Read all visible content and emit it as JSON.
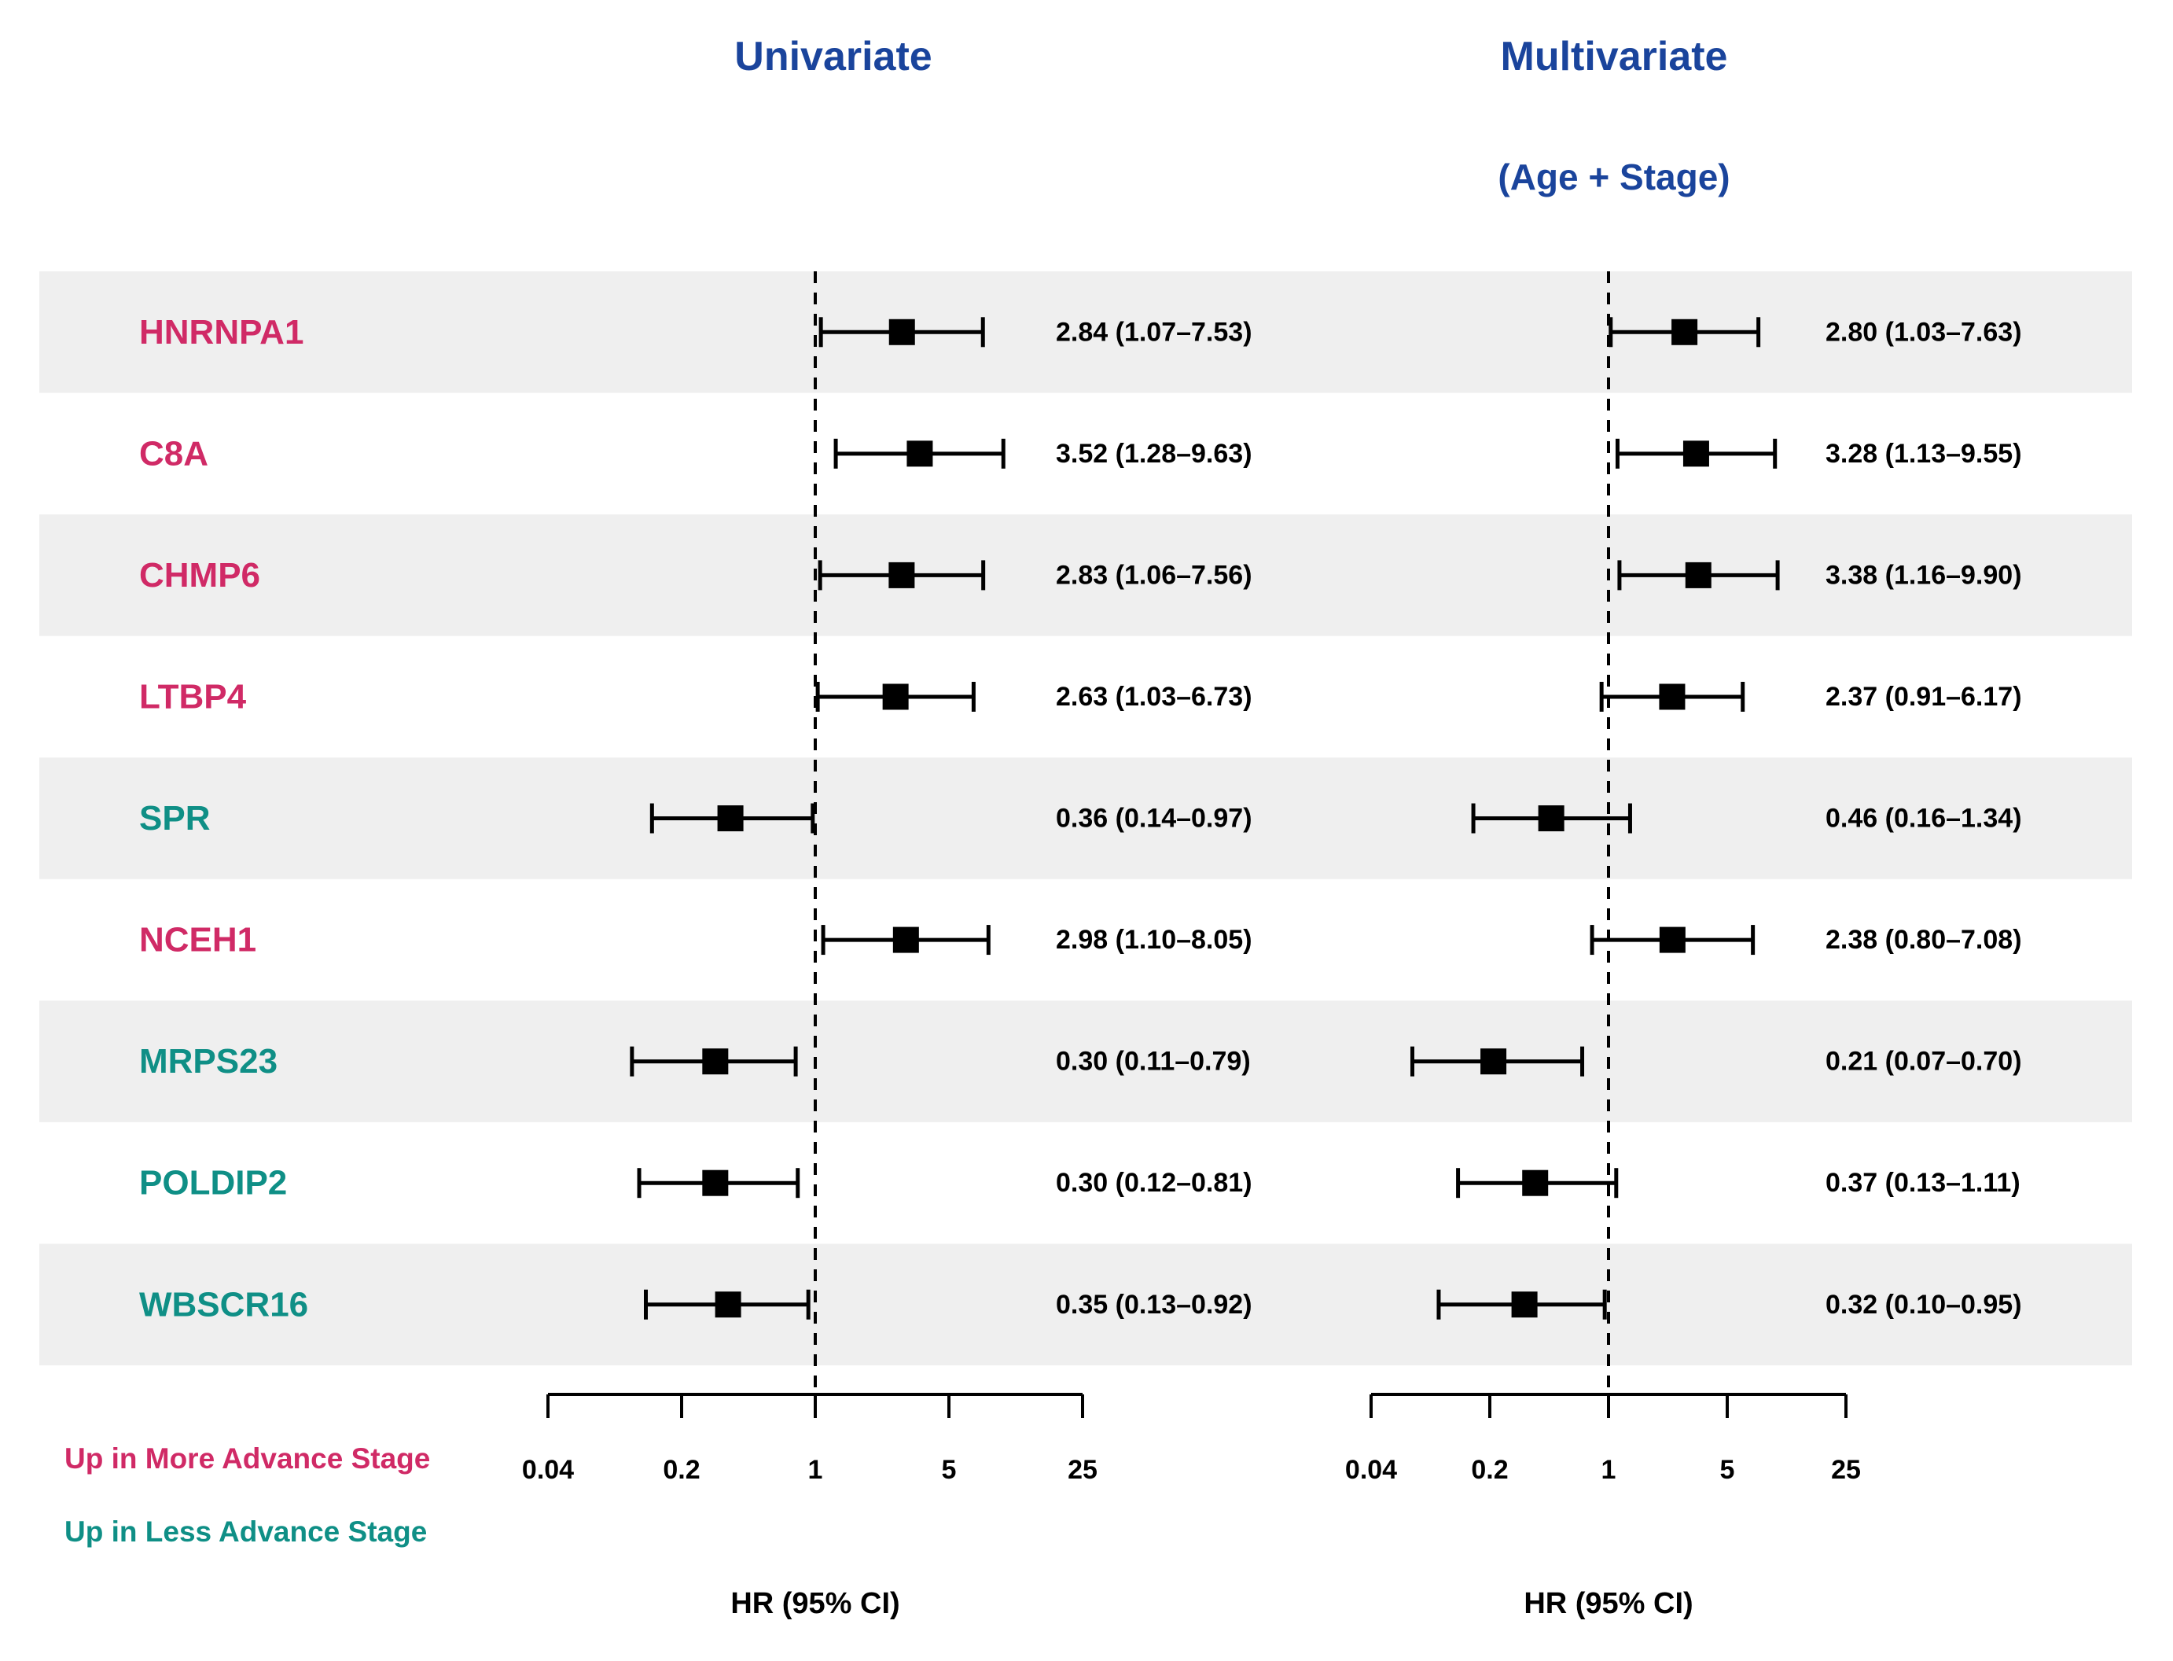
{
  "headers": {
    "univariate": "Univariate",
    "multivariate": "Multivariate",
    "multivariate_subtitle": "(Age + Stage)"
  },
  "legend": {
    "up_more": "Up in More Advance Stage",
    "up_less": "Up in Less Advance Stage"
  },
  "axes": {
    "xlabel": "HR (95% CI)",
    "scale": "log",
    "ticks": [
      0.04,
      0.2,
      1,
      5,
      25
    ],
    "tick_labels": [
      "0.04",
      "0.2",
      "1",
      "5",
      "25"
    ],
    "reference_line": 1
  },
  "colors": {
    "up_more": "#D02A66",
    "up_less": "#0F8F86",
    "header": "#1A449C",
    "band": "#EFEFEF",
    "marker": "#000000",
    "axis": "#000000"
  },
  "chart_data": {
    "type": "forest",
    "panel_titles": [
      "Univariate",
      "Multivariate (Age + Stage)"
    ],
    "x_ticks": [
      0.04,
      0.2,
      1,
      5,
      25
    ],
    "xlabel": "HR (95% CI)",
    "rows": [
      {
        "gene": "HNRNPA1",
        "group": "up_more",
        "uni": {
          "hr": 2.84,
          "lo": 1.07,
          "hi": 7.53,
          "label": "2.84 (1.07–7.53)"
        },
        "multi": {
          "hr": 2.8,
          "lo": 1.03,
          "hi": 7.63,
          "label": "2.80 (1.03–7.63)"
        }
      },
      {
        "gene": "C8A",
        "group": "up_more",
        "uni": {
          "hr": 3.52,
          "lo": 1.28,
          "hi": 9.63,
          "label": "3.52 (1.28–9.63)"
        },
        "multi": {
          "hr": 3.28,
          "lo": 1.13,
          "hi": 9.55,
          "label": "3.28 (1.13–9.55)"
        }
      },
      {
        "gene": "CHMP6",
        "group": "up_more",
        "uni": {
          "hr": 2.83,
          "lo": 1.06,
          "hi": 7.56,
          "label": "2.83 (1.06–7.56)"
        },
        "multi": {
          "hr": 3.38,
          "lo": 1.16,
          "hi": 9.9,
          "label": "3.38 (1.16–9.90)"
        }
      },
      {
        "gene": "LTBP4",
        "group": "up_more",
        "uni": {
          "hr": 2.63,
          "lo": 1.03,
          "hi": 6.73,
          "label": "2.63 (1.03–6.73)"
        },
        "multi": {
          "hr": 2.37,
          "lo": 0.91,
          "hi": 6.17,
          "label": "2.37 (0.91–6.17)"
        }
      },
      {
        "gene": "SPR",
        "group": "up_less",
        "uni": {
          "hr": 0.36,
          "lo": 0.14,
          "hi": 0.97,
          "label": "0.36 (0.14–0.97)"
        },
        "multi": {
          "hr": 0.46,
          "lo": 0.16,
          "hi": 1.34,
          "label": "0.46 (0.16–1.34)"
        }
      },
      {
        "gene": "NCEH1",
        "group": "up_more",
        "uni": {
          "hr": 2.98,
          "lo": 1.1,
          "hi": 8.05,
          "label": "2.98 (1.10–8.05)"
        },
        "multi": {
          "hr": 2.38,
          "lo": 0.8,
          "hi": 7.08,
          "label": "2.38 (0.80–7.08)"
        }
      },
      {
        "gene": "MRPS23",
        "group": "up_less",
        "uni": {
          "hr": 0.3,
          "lo": 0.11,
          "hi": 0.79,
          "label": "0.30 (0.11–0.79)"
        },
        "multi": {
          "hr": 0.21,
          "lo": 0.07,
          "hi": 0.7,
          "label": "0.21 (0.07–0.70)"
        }
      },
      {
        "gene": "POLDIP2",
        "group": "up_less",
        "uni": {
          "hr": 0.3,
          "lo": 0.12,
          "hi": 0.81,
          "label": "0.30 (0.12–0.81)"
        },
        "multi": {
          "hr": 0.37,
          "lo": 0.13,
          "hi": 1.11,
          "label": "0.37 (0.13–1.11)"
        }
      },
      {
        "gene": "WBSCR16",
        "group": "up_less",
        "uni": {
          "hr": 0.35,
          "lo": 0.13,
          "hi": 0.92,
          "label": "0.35 (0.13–0.92)"
        },
        "multi": {
          "hr": 0.32,
          "lo": 0.1,
          "hi": 0.95,
          "label": "0.32 (0.10–0.95)"
        }
      }
    ]
  }
}
